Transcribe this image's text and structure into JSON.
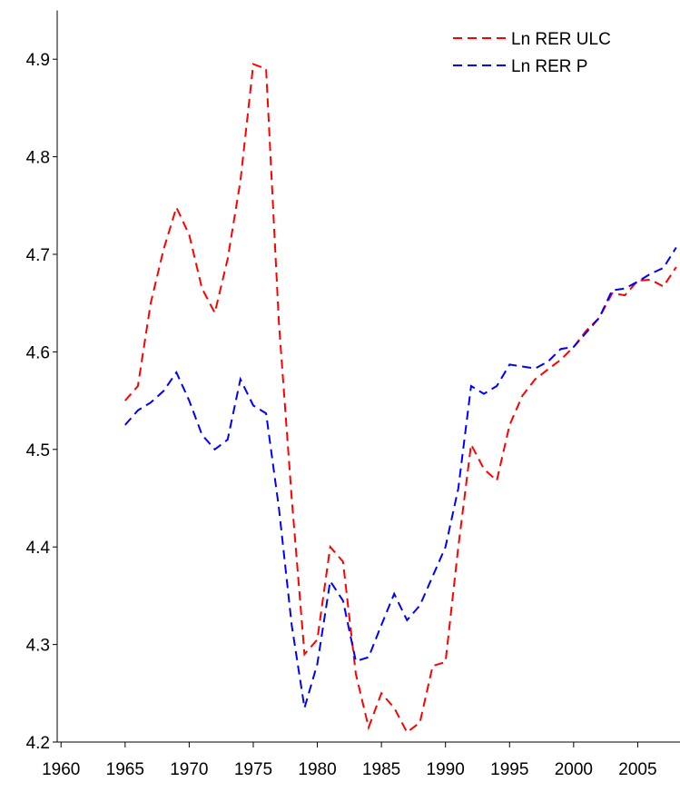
{
  "chart_data": {
    "type": "line",
    "x": [
      1965,
      1966,
      1967,
      1968,
      1969,
      1970,
      1971,
      1972,
      1973,
      1974,
      1975,
      1976,
      1977,
      1978,
      1979,
      1980,
      1981,
      1982,
      1983,
      1984,
      1985,
      1986,
      1987,
      1988,
      1989,
      1990,
      1991,
      1992,
      1993,
      1994,
      1995,
      1996,
      1997,
      1998,
      1999,
      2000,
      2001,
      2002,
      2003,
      2004,
      2005,
      2006,
      2007,
      2008
    ],
    "series": [
      {
        "name": "Ln RER ULC",
        "color": "#ff0000",
        "values": [
          4.55,
          4.565,
          4.65,
          4.705,
          4.748,
          4.72,
          4.665,
          4.64,
          4.695,
          4.775,
          4.895,
          4.89,
          4.63,
          4.45,
          4.29,
          4.305,
          4.4,
          4.385,
          4.27,
          4.215,
          4.25,
          4.235,
          4.21,
          4.22,
          4.278,
          4.282,
          4.4,
          4.505,
          4.48,
          4.468,
          4.525,
          4.555,
          4.572,
          4.582,
          4.592,
          4.605,
          4.622,
          4.635,
          4.66,
          4.658,
          4.673,
          4.674,
          4.667,
          4.687
        ]
      },
      {
        "name": "Ln RER P",
        "color": "#0000ff",
        "values": [
          4.525,
          4.54,
          4.548,
          4.56,
          4.579,
          4.55,
          4.515,
          4.5,
          4.51,
          4.572,
          4.545,
          4.537,
          4.44,
          4.32,
          4.235,
          4.28,
          4.365,
          4.345,
          4.283,
          4.287,
          4.32,
          4.352,
          4.325,
          4.34,
          4.37,
          4.4,
          4.46,
          4.565,
          4.557,
          4.565,
          4.587,
          4.585,
          4.583,
          4.59,
          4.603,
          4.605,
          4.62,
          4.635,
          4.663,
          4.665,
          4.672,
          4.68,
          4.686,
          4.707
        ]
      }
    ],
    "xlim": [
      1959.7,
      2008.3
    ],
    "xticks": [
      1960,
      1965,
      1970,
      1975,
      1980,
      1985,
      1990,
      1995,
      2000,
      2005
    ],
    "ylim": [
      4.2,
      4.95
    ],
    "yticks": [
      4.2,
      4.3,
      4.4,
      4.5,
      4.6,
      4.7,
      4.8,
      4.9
    ],
    "dashed": true,
    "legend": "top-right"
  }
}
